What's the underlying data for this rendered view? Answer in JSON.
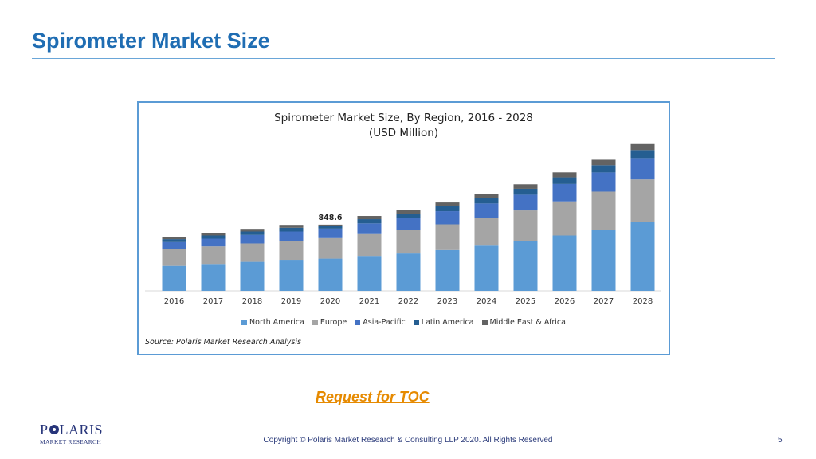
{
  "slide": {
    "title": "Spirometer Market Size",
    "toc_link": "Request for TOC",
    "copyright": "Copyright © Polaris Market Research & Consulting LLP 2020. All Rights Reserved",
    "page_number": "5"
  },
  "logo": {
    "name_before": "P",
    "name_after": "LARIS",
    "subtitle": "MARKET RESEARCH",
    "color": "#27357a"
  },
  "colors": {
    "title": "#1f6db3",
    "toc": "#e68a00",
    "frame_border": "#5b9bd5"
  },
  "chart_data": {
    "type": "bar",
    "stacked": true,
    "title": "Spirometer Market Size, By Region, 2016 - 2028",
    "subtitle": "(USD Million)",
    "source": "Source: Polaris Market Research Analysis",
    "categories": [
      "2016",
      "2017",
      "2018",
      "2019",
      "2020",
      "2021",
      "2022",
      "2023",
      "2024",
      "2025",
      "2026",
      "2027",
      "2028"
    ],
    "series": [
      {
        "name": "North America",
        "color": "#5b9bd5",
        "values": [
          320,
          345,
          372,
          398,
          413,
          448,
          479,
          523,
          580,
          638,
          710,
          786,
          887
        ]
      },
      {
        "name": "Europe",
        "color": "#a5a5a5",
        "values": [
          215,
          225,
          236,
          245,
          263,
          280,
          300,
          330,
          356,
          393,
          437,
          486,
          541
        ]
      },
      {
        "name": "Asia-Pacific",
        "color": "#4472c4",
        "values": [
          90,
          99,
          109,
          118,
          122,
          137,
          151,
          168,
          184,
          201,
          223,
          246,
          274
        ]
      },
      {
        "name": "Latin America",
        "color": "#255e91",
        "values": [
          38,
          41,
          44,
          48,
          34,
          54,
          58,
          64,
          70,
          76,
          85,
          93,
          103
        ]
      },
      {
        "name": "Middle East & Africa",
        "color": "#636363",
        "values": [
          30,
          32,
          34,
          37,
          17,
          41,
          44,
          48,
          53,
          58,
          64,
          70,
          77
        ]
      }
    ],
    "annotations": [
      {
        "category": "2020",
        "label": "848.6"
      }
    ],
    "ylim": [
      0,
      1900
    ],
    "grid": false,
    "legend_position": "bottom"
  }
}
